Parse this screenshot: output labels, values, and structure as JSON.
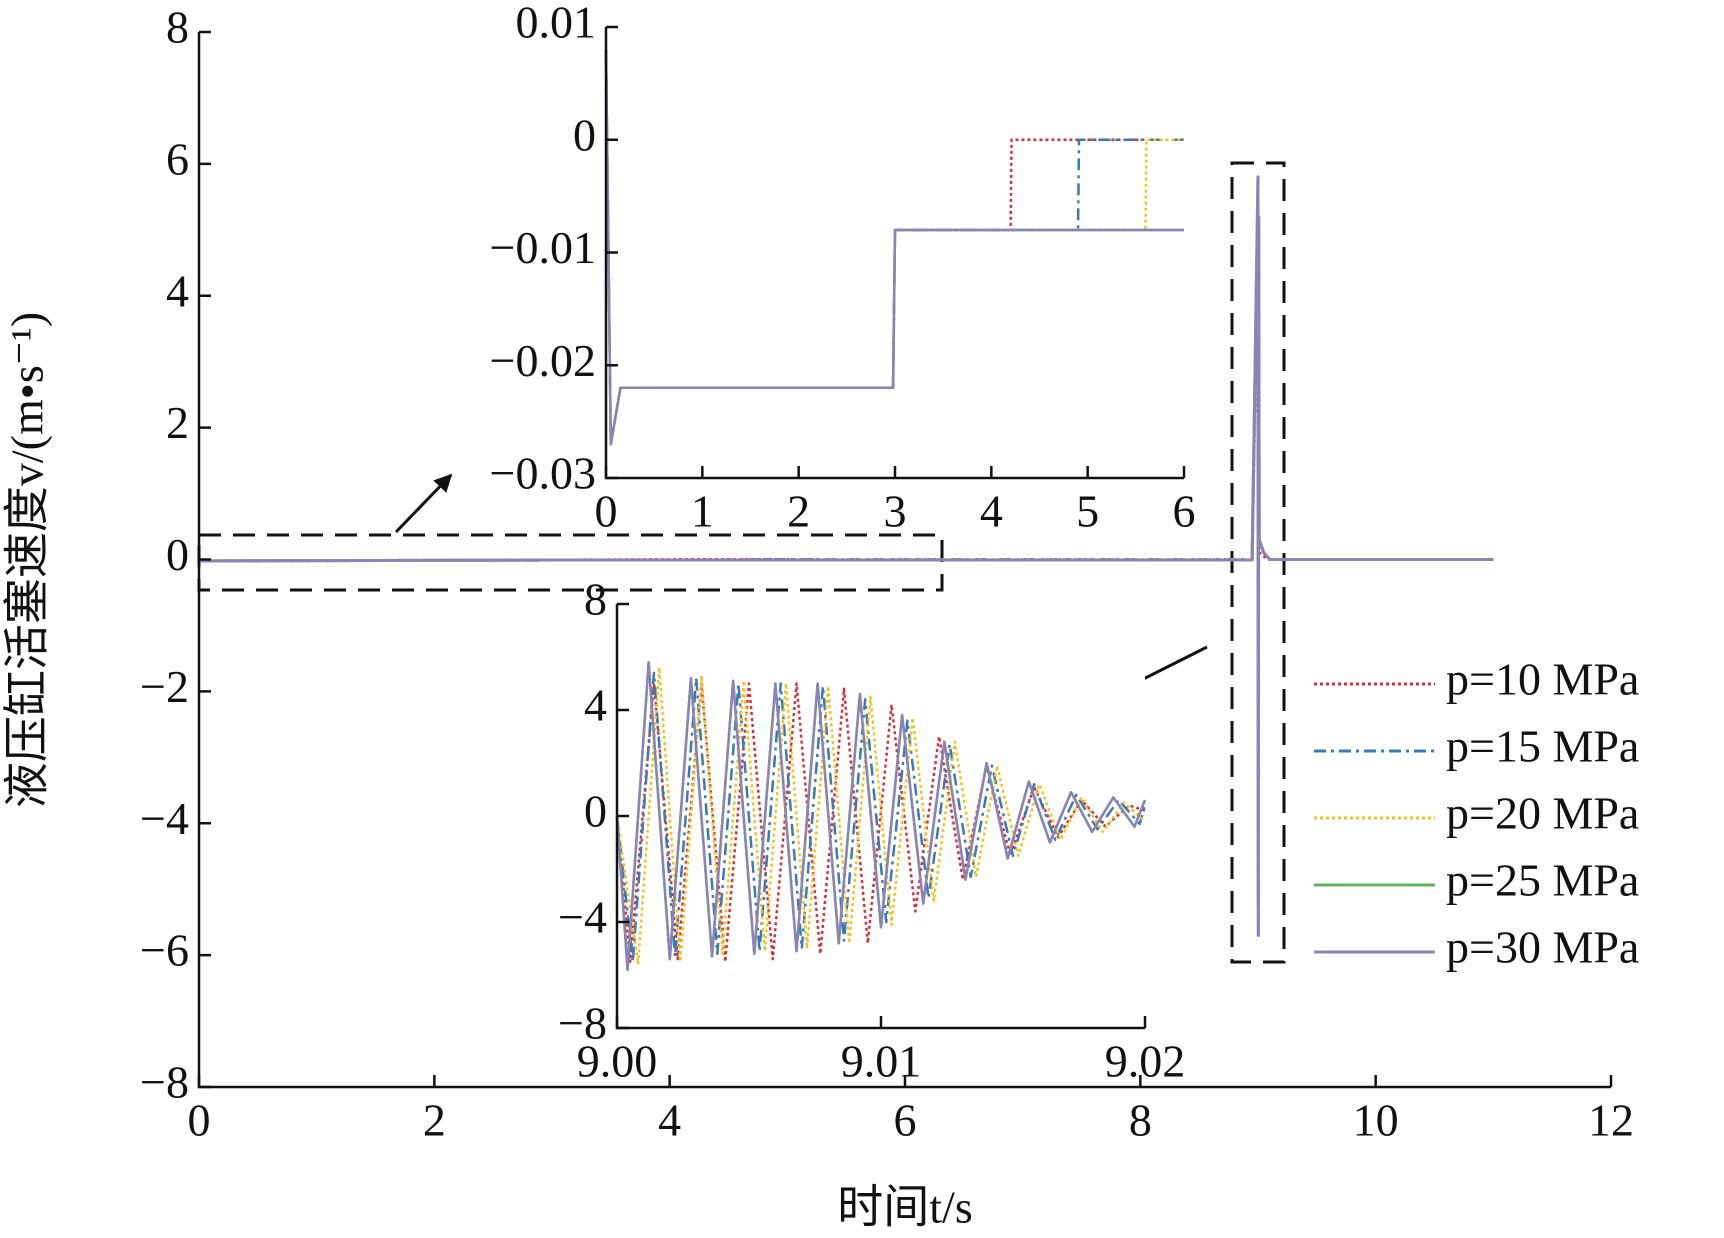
{
  "chart_data": [
    {
      "type": "line",
      "xlabel": "时间t/s",
      "ylabel": "液压缸活塞速度v/(m•s⁻¹)",
      "legend": "right",
      "x": [
        0,
        3,
        4.2,
        4.9,
        5.6,
        8.95,
        9.0,
        9.003,
        9.006,
        9.01,
        9.05,
        9.1,
        11
      ],
      "series": [
        {
          "name": "p=10 MPa",
          "color": "#d62f3a",
          "dash": "dotted",
          "values": [
            -0.022,
            -0.008,
            0,
            0,
            0,
            0,
            5.0,
            -5.0,
            4.5,
            0.1,
            0.05,
            0,
            0
          ]
        },
        {
          "name": "p=15 MPa",
          "color": "#3a7ab5",
          "dash": "dashdot",
          "values": [
            -0.022,
            -0.008,
            -0.008,
            0,
            0,
            0,
            5.4,
            -5.3,
            5.0,
            0.2,
            0.1,
            0,
            0
          ]
        },
        {
          "name": "p=20 MPa",
          "color": "#f0c419",
          "dash": "dotted",
          "values": [
            -0.022,
            -0.008,
            -0.008,
            -0.008,
            0,
            0,
            5.6,
            -5.4,
            5.1,
            0.2,
            0.1,
            0,
            0
          ]
        },
        {
          "name": "p=25 MPa",
          "color": "#5fb55f",
          "dash": "solid",
          "values": [
            -0.022,
            -0.008,
            -0.008,
            -0.008,
            -0.008,
            -0.008,
            5.8,
            -5.7,
            5.2,
            0.3,
            0.1,
            0,
            0
          ]
        },
        {
          "name": "p=30 MPa",
          "color": "#8b83b8",
          "dash": "solid",
          "values": [
            -0.022,
            -0.008,
            -0.008,
            -0.008,
            -0.008,
            -0.008,
            5.8,
            -5.7,
            5.2,
            0.3,
            0.1,
            0,
            0
          ]
        }
      ],
      "xlim": [
        0,
        12
      ],
      "xticks": [
        0,
        2,
        4,
        6,
        8,
        10,
        12
      ],
      "ylim": [
        -8,
        8
      ],
      "yticks": [
        {
          "value": -8,
          "label": "−8"
        },
        {
          "value": -6,
          "label": "−6"
        },
        {
          "value": -4,
          "label": "−4"
        },
        {
          "value": -2,
          "label": "−2"
        },
        0,
        2,
        4,
        6,
        8
      ]
    },
    {
      "type": "line",
      "x": [
        0,
        0.05,
        0.15,
        2.98,
        3.0,
        4.2,
        4.21,
        4.9,
        4.91,
        5.6,
        5.61,
        6
      ],
      "series": [
        {
          "color": "#d62f3a",
          "dash": "dotted",
          "values": [
            0.008,
            -0.027,
            -0.022,
            -0.022,
            -0.008,
            -0.008,
            0,
            0,
            0,
            0,
            0,
            0
          ]
        },
        {
          "color": "#3a7ab5",
          "dash": "dashdot",
          "values": [
            0.008,
            -0.027,
            -0.022,
            -0.022,
            -0.008,
            -0.008,
            -0.008,
            -0.008,
            0,
            0,
            0,
            0
          ]
        },
        {
          "color": "#f0c419",
          "dash": "dotted",
          "values": [
            0.008,
            -0.027,
            -0.022,
            -0.022,
            -0.008,
            -0.008,
            -0.008,
            -0.008,
            -0.008,
            -0.008,
            0,
            0
          ]
        },
        {
          "color": "#5fb55f",
          "dash": "solid",
          "values": [
            0.008,
            -0.027,
            -0.022,
            -0.022,
            -0.008,
            -0.008,
            -0.008,
            -0.008,
            -0.008,
            -0.008,
            -0.008,
            -0.008
          ]
        },
        {
          "color": "#8b83b8",
          "dash": "solid",
          "values": [
            0.008,
            -0.027,
            -0.022,
            -0.022,
            -0.008,
            -0.008,
            -0.008,
            -0.008,
            -0.008,
            -0.008,
            -0.008,
            -0.008
          ]
        }
      ],
      "xlim": [
        0,
        6
      ],
      "xticks": [
        0,
        1,
        2,
        3,
        4,
        5,
        6
      ],
      "ylim": [
        -0.03,
        0.01
      ],
      "yticks": [
        {
          "value": -0.03,
          "label": "−0.03"
        },
        {
          "value": -0.02,
          "label": "−0.02"
        },
        {
          "value": -0.01,
          "label": "−0.01"
        },
        0,
        0.01
      ]
    },
    {
      "type": "line",
      "series": [
        {
          "color": "#d62f3a",
          "dash": "dotted",
          "x": [
            9.0,
            9.0005,
            9.0014,
            9.0023,
            9.0032,
            9.0041,
            9.005,
            9.0059,
            9.0068,
            9.0077,
            9.0086,
            9.0095,
            9.0104,
            9.0113,
            9.0122,
            9.0131,
            9.014,
            9.0149,
            9.0158,
            9.0167,
            9.0176,
            9.0185,
            9.0194,
            9.02
          ],
          "values": [
            0,
            -5.5,
            5.0,
            -5.4,
            5.0,
            -5.5,
            5.0,
            -5.4,
            5.0,
            -5.2,
            4.8,
            -4.8,
            4.2,
            -3.6,
            3.0,
            -2.4,
            1.9,
            -1.5,
            1.1,
            -0.8,
            0.6,
            -0.4,
            0.4,
            0.2
          ]
        },
        {
          "color": "#3a7ab5",
          "dash": "dashdot",
          "x": [
            9.0,
            9.0006,
            9.0014,
            9.0022,
            9.003,
            9.0038,
            9.0046,
            9.0054,
            9.0062,
            9.007,
            9.0078,
            9.0086,
            9.0094,
            9.0102,
            9.011,
            9.0118,
            9.0126,
            9.0134,
            9.0142,
            9.015,
            9.0158,
            9.0166,
            9.0174,
            9.0182,
            9.019,
            9.0198,
            9.02
          ],
          "values": [
            0,
            -5.5,
            5.4,
            -5.3,
            5.2,
            -5.2,
            5.0,
            -5.1,
            5.0,
            -5.0,
            4.9,
            -4.7,
            4.4,
            -4.0,
            3.6,
            -3.1,
            2.7,
            -2.3,
            1.9,
            -1.5,
            1.2,
            -0.9,
            0.8,
            -0.5,
            0.6,
            -0.3,
            0.4
          ]
        },
        {
          "color": "#f0c419",
          "dash": "dotted",
          "x": [
            9.0,
            9.0008,
            9.0016,
            9.0024,
            9.0032,
            9.004,
            9.0048,
            9.0056,
            9.0064,
            9.0072,
            9.008,
            9.0088,
            9.0096,
            9.0104,
            9.0112,
            9.012,
            9.0128,
            9.0136,
            9.0144,
            9.0152,
            9.016,
            9.0168,
            9.0176,
            9.0184,
            9.0192,
            9.02
          ],
          "values": [
            0,
            -5.6,
            5.6,
            -5.5,
            5.3,
            -5.2,
            5.1,
            -5.1,
            5.0,
            -5.0,
            4.9,
            -4.8,
            4.5,
            -4.1,
            3.7,
            -3.2,
            2.8,
            -2.3,
            1.9,
            -1.5,
            1.2,
            -0.9,
            0.7,
            -0.6,
            0.5,
            -0.2
          ]
        },
        {
          "color": "#5fb55f",
          "dash": "solid",
          "x": [
            9.0,
            9.0004,
            9.0012,
            9.002,
            9.0028,
            9.0036,
            9.0044,
            9.0052,
            9.006,
            9.0068,
            9.0076,
            9.0084,
            9.0092,
            9.01,
            9.0108,
            9.0116,
            9.0124,
            9.0132,
            9.014,
            9.0148,
            9.0156,
            9.0164,
            9.0172,
            9.018,
            9.0188,
            9.0196,
            9.02
          ],
          "values": [
            0,
            -5.8,
            5.8,
            -5.4,
            5.2,
            -5.3,
            5.1,
            -5.2,
            5.0,
            -5.1,
            5.0,
            -4.8,
            4.6,
            -4.2,
            3.8,
            -3.3,
            2.8,
            -2.4,
            2.0,
            -1.6,
            1.3,
            -1.0,
            0.9,
            -0.6,
            0.7,
            -0.4,
            0.6
          ]
        },
        {
          "color": "#8b83b8",
          "dash": "solid",
          "x": [
            9.0,
            9.0004,
            9.0012,
            9.002,
            9.0028,
            9.0036,
            9.0044,
            9.0052,
            9.006,
            9.0068,
            9.0076,
            9.0084,
            9.0092,
            9.01,
            9.0108,
            9.0116,
            9.0124,
            9.0132,
            9.014,
            9.0148,
            9.0156,
            9.0164,
            9.0172,
            9.018,
            9.0188,
            9.0196,
            9.02
          ],
          "values": [
            0,
            -5.8,
            5.8,
            -5.4,
            5.2,
            -5.3,
            5.1,
            -5.2,
            5.0,
            -5.1,
            5.0,
            -4.8,
            4.6,
            -4.2,
            3.8,
            -3.3,
            2.8,
            -2.4,
            2.0,
            -1.6,
            1.3,
            -1.0,
            0.9,
            -0.6,
            0.7,
            -0.4,
            0.6
          ]
        }
      ],
      "xlim": [
        9.0,
        9.02
      ],
      "xticks": [
        {
          "value": 9.0,
          "label": "9.00"
        },
        9.01,
        9.02
      ],
      "ylim": [
        -8,
        8
      ],
      "yticks": [
        {
          "value": -8,
          "label": "−8"
        },
        {
          "value": -4,
          "label": "−4"
        },
        0,
        4,
        8
      ]
    }
  ]
}
